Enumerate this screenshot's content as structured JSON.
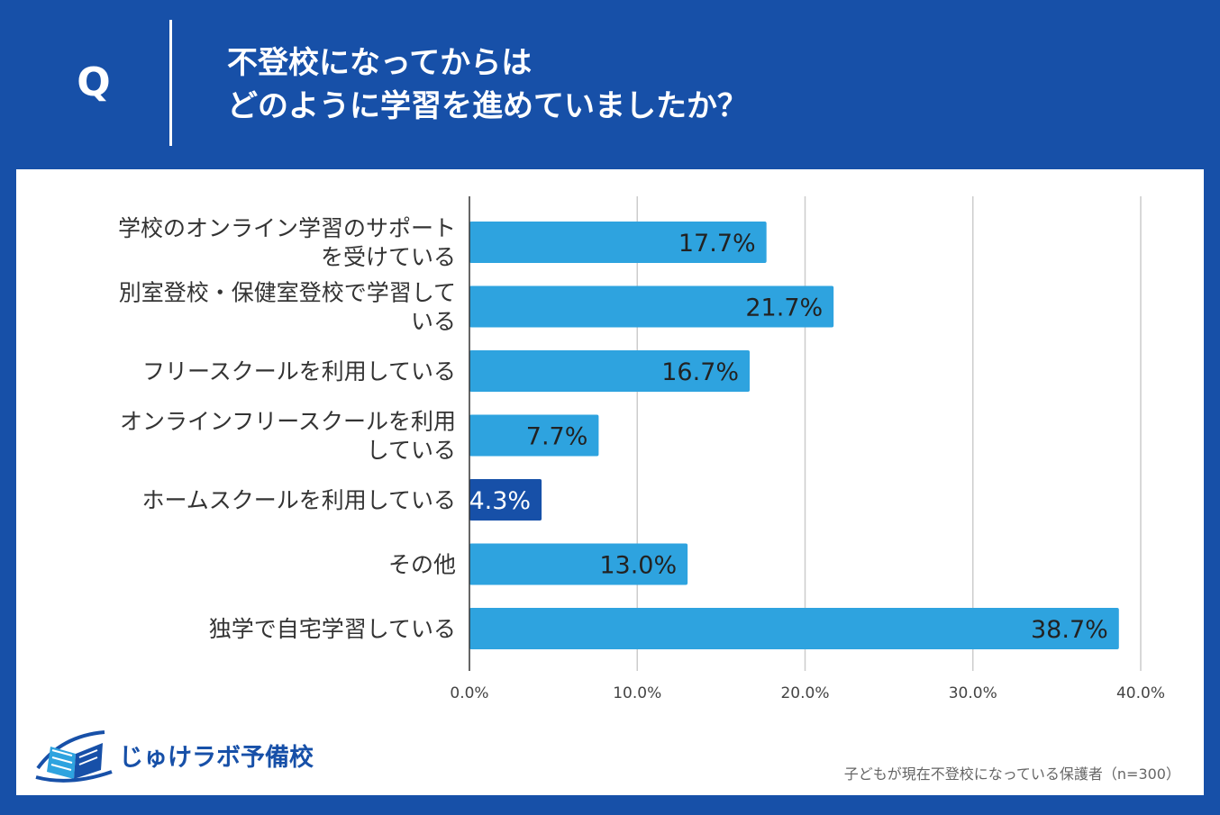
{
  "header": {
    "q_mark": "Q",
    "question_line1": "不登校になってからは",
    "question_line2": "どのように学習を進めていましたか？"
  },
  "chart_data": {
    "type": "bar",
    "orientation": "horizontal",
    "categories": [
      [
        "学校のオンライン学習のサポート",
        "を受けている"
      ],
      [
        "別室登校・保健室登校で学習して",
        "いる"
      ],
      [
        "フリースクールを利用している"
      ],
      [
        "オンラインフリースクールを利用",
        "している"
      ],
      [
        "ホームスクールを利用している"
      ],
      [
        "その他"
      ],
      [
        "独学で自宅学習している"
      ]
    ],
    "values": [
      17.7,
      21.7,
      16.7,
      7.7,
      4.3,
      13.0,
      38.7
    ],
    "value_labels": [
      "17.7%",
      "21.7%",
      "16.7%",
      "7.7%",
      "4.3%",
      "13.0%",
      "38.7%"
    ],
    "xlim": [
      0,
      40
    ],
    "xticks": [
      0,
      10,
      20,
      30,
      40
    ],
    "xtick_labels": [
      "0.0%",
      "10.0%",
      "20.0%",
      "30.0%",
      "40.0%"
    ],
    "grid": true,
    "colors": {
      "bar": "#2ea3df",
      "highlight_bar": "#1750a8",
      "highlight_index": 4,
      "value_text": "#222222",
      "highlight_value_text": "#ffffff",
      "grid": "#cccccc",
      "axis": "#333333"
    }
  },
  "footer": {
    "logo_text": "じゅけラボ予備校",
    "logo_icon": "open-book-icon",
    "note": "子どもが現在不登校になっている保護者（n=300）"
  }
}
